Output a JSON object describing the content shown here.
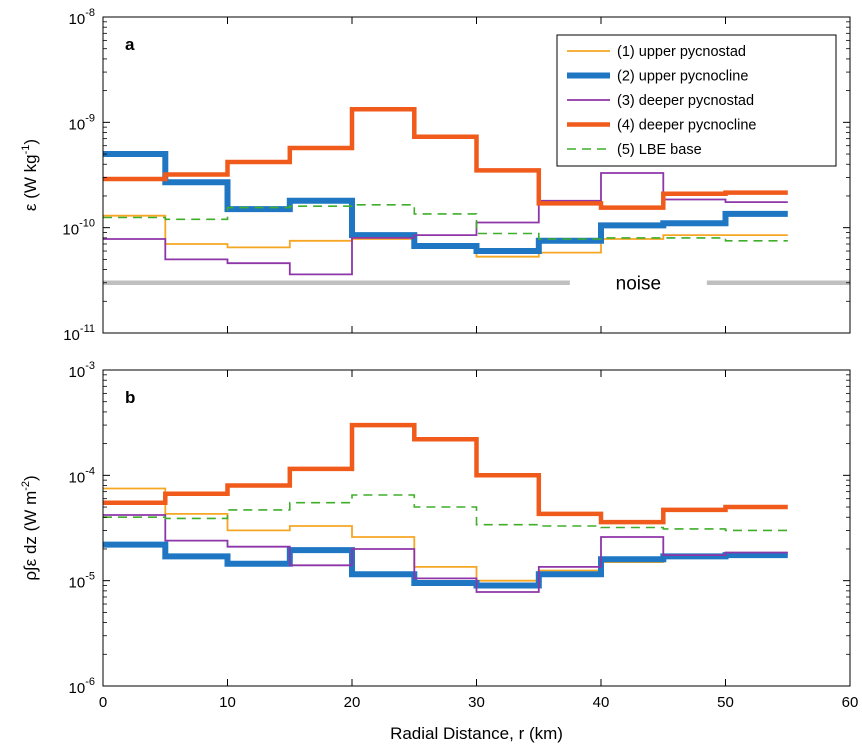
{
  "chart_data": [
    {
      "panel": "a",
      "type": "line",
      "step": true,
      "yscale": "log",
      "xlim": [
        0,
        60
      ],
      "ylim": [
        1e-11,
        1e-08
      ],
      "ylabel": "ε (W kg⁻¹)",
      "ylabel_parts": [
        "ε (W kg",
        "-1",
        ")"
      ],
      "yticks": [
        {
          "value": 1e-11,
          "base": "10",
          "exp": "-11"
        },
        {
          "value": 1e-10,
          "base": "10",
          "exp": "-10"
        },
        {
          "value": 1e-09,
          "base": "10",
          "exp": "-9"
        },
        {
          "value": 1e-08,
          "base": "10",
          "exp": "-8"
        }
      ],
      "legend_position": "top-right",
      "edges": [
        0,
        5,
        10,
        15,
        20,
        25,
        30,
        35,
        40,
        45,
        50,
        55
      ],
      "series": [
        {
          "name": "(1) upper pycnostad",
          "color": "#f5a623",
          "width": 1.8,
          "dash": "",
          "values": [
            1.3e-10,
            7e-11,
            6.5e-11,
            7.5e-11,
            7.8e-11,
            6.8e-11,
            5.3e-11,
            5.8e-11,
            7.8e-11,
            8.5e-11,
            8.5e-11
          ]
        },
        {
          "name": "(2) upper pycnocline",
          "color": "#1f77c4",
          "width": 6,
          "dash": "",
          "values": [
            5e-10,
            2.7e-10,
            1.5e-10,
            1.8e-10,
            8.5e-11,
            6.7e-11,
            6e-11,
            7.5e-11,
            1.05e-10,
            1.1e-10,
            1.35e-10
          ]
        },
        {
          "name": "(3) deeper pycnostad",
          "color": "#8e35a8",
          "width": 1.8,
          "dash": "",
          "values": [
            7.8e-11,
            5e-11,
            4.6e-11,
            3.6e-11,
            8e-11,
            8.5e-11,
            1.12e-10,
            1.8e-10,
            3.3e-10,
            1.85e-10,
            1.75e-10
          ]
        },
        {
          "name": "(4) deeper pycnocline",
          "color": "#f05a1a",
          "width": 4.5,
          "dash": "",
          "values": [
            2.9e-10,
            3.2e-10,
            4.2e-10,
            5.7e-10,
            1.33e-09,
            7.3e-10,
            3.5e-10,
            1.7e-10,
            1.55e-10,
            2.1e-10,
            2.15e-10
          ]
        },
        {
          "name": "(5) LBE base",
          "color": "#3fae2a",
          "width": 1.6,
          "dash": "9,6",
          "values": [
            1.25e-10,
            1.2e-10,
            1.55e-10,
            1.6e-10,
            1.65e-10,
            1.35e-10,
            8.8e-11,
            7.8e-11,
            8e-11,
            8e-11,
            7.5e-11
          ]
        }
      ],
      "noise": {
        "label": "noise",
        "value": 3e-11,
        "color": "#bfbfbf"
      }
    },
    {
      "panel": "b",
      "type": "line",
      "step": true,
      "yscale": "log",
      "xlim": [
        0,
        60
      ],
      "ylim": [
        1e-06,
        0.001
      ],
      "xlabel": "Radial Distance, r (km)",
      "ylabel": "ρ∫ε dz (W m⁻²)",
      "ylabel_parts": [
        "ρ∫ε dz (W m",
        "-2",
        ")"
      ],
      "xticks": [
        "0",
        "10",
        "20",
        "30",
        "40",
        "50",
        "60"
      ],
      "yticks": [
        {
          "value": 1e-06,
          "base": "10",
          "exp": "-6"
        },
        {
          "value": 1e-05,
          "base": "10",
          "exp": "-5"
        },
        {
          "value": 0.0001,
          "base": "10",
          "exp": "-4"
        },
        {
          "value": 0.001,
          "base": "10",
          "exp": "-3"
        }
      ],
      "edges": [
        0,
        5,
        10,
        15,
        20,
        25,
        30,
        35,
        40,
        45,
        50,
        55
      ],
      "series": [
        {
          "name": "(1) upper pycnostad",
          "color": "#f5a623",
          "width": 1.8,
          "dash": "",
          "values": [
            7.5e-05,
            4.3e-05,
            3e-05,
            3.3e-05,
            2.6e-05,
            1.35e-05,
            1e-05,
            1.25e-05,
            1.5e-05,
            1.65e-05,
            1.8e-05
          ]
        },
        {
          "name": "(2) upper pycnocline",
          "color": "#1f77c4",
          "width": 6,
          "dash": "",
          "values": [
            2.2e-05,
            1.7e-05,
            1.45e-05,
            1.95e-05,
            1.15e-05,
            9.5e-06,
            9e-06,
            1.15e-05,
            1.6e-05,
            1.7e-05,
            1.75e-05
          ]
        },
        {
          "name": "(3) deeper pycnostad",
          "color": "#8e35a8",
          "width": 1.8,
          "dash": "",
          "values": [
            4.2e-05,
            2.4e-05,
            2.1e-05,
            1.4e-05,
            2e-05,
            1.05e-05,
            7.8e-06,
            1.35e-05,
            2.6e-05,
            1.75e-05,
            1.85e-05
          ]
        },
        {
          "name": "(4) deeper pycnocline",
          "color": "#f05a1a",
          "width": 4.5,
          "dash": "",
          "values": [
            5.5e-05,
            6.7e-05,
            8e-05,
            0.000115,
            0.0003,
            0.00022,
            0.0001,
            4.3e-05,
            3.6e-05,
            4.7e-05,
            5e-05
          ]
        },
        {
          "name": "(5) LBE base",
          "color": "#3fae2a",
          "width": 1.6,
          "dash": "9,6",
          "values": [
            4e-05,
            3.9e-05,
            4.7e-05,
            5.5e-05,
            6.5e-05,
            5e-05,
            3.4e-05,
            3.3e-05,
            3.2e-05,
            3.1e-05,
            3e-05
          ]
        }
      ]
    }
  ]
}
